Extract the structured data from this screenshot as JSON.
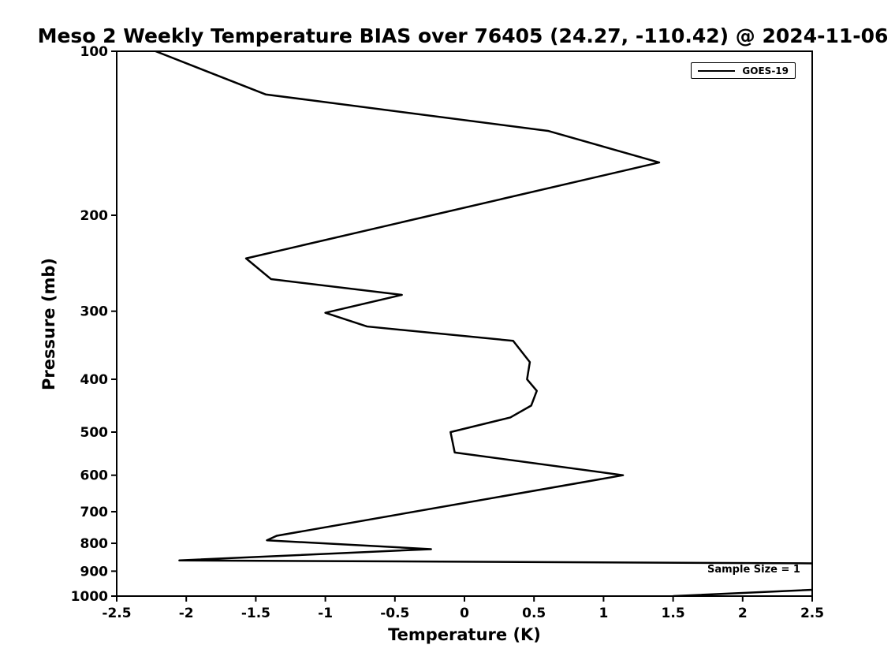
{
  "chart_data": {
    "type": "line",
    "title": "Meso 2 Weekly Temperature BIAS over 76405 (24.27, -110.42) @ 2024-11-06",
    "xlabel": "Temperature (K)",
    "ylabel": "Pressure (mb)",
    "xlim": [
      -2.5,
      2.5
    ],
    "ylim": [
      1000,
      100
    ],
    "yscale": "log",
    "grid": false,
    "x_ticks": [
      -2.5,
      -2,
      -1.5,
      -1,
      -0.5,
      0,
      0.5,
      1,
      1.5,
      2,
      2.5
    ],
    "x_tick_labels": [
      "-2.5",
      "-2",
      "-1.5",
      "-1",
      "-0.5",
      "0",
      "0.5",
      "1",
      "1.5",
      "2",
      "2.5"
    ],
    "y_ticks": [
      100,
      200,
      300,
      400,
      500,
      600,
      700,
      800,
      900,
      1000
    ],
    "line_color": "#000000",
    "legend": {
      "position": "upper right",
      "entries": [
        {
          "label": "GOES-19",
          "color": "#000000"
        }
      ]
    },
    "annotation": "Sample Size = 1",
    "series": [
      {
        "name": "GOES-19",
        "color": "#000000",
        "points": [
          {
            "temp": -2.22,
            "pressure": 100
          },
          {
            "temp": -1.43,
            "pressure": 120
          },
          {
            "temp": 0.6,
            "pressure": 140
          },
          {
            "temp": 1.4,
            "pressure": 160
          },
          {
            "temp": -1.57,
            "pressure": 240
          },
          {
            "temp": -1.39,
            "pressure": 262
          },
          {
            "temp": -0.45,
            "pressure": 280
          },
          {
            "temp": -1.0,
            "pressure": 302
          },
          {
            "temp": -0.7,
            "pressure": 320
          },
          {
            "temp": 0.35,
            "pressure": 340
          },
          {
            "temp": 0.47,
            "pressure": 372
          },
          {
            "temp": 0.45,
            "pressure": 400
          },
          {
            "temp": 0.52,
            "pressure": 420
          },
          {
            "temp": 0.48,
            "pressure": 447
          },
          {
            "temp": 0.33,
            "pressure": 470
          },
          {
            "temp": -0.1,
            "pressure": 500
          },
          {
            "temp": -0.07,
            "pressure": 545
          },
          {
            "temp": 1.14,
            "pressure": 600
          },
          {
            "temp": -1.35,
            "pressure": 775
          },
          {
            "temp": -1.42,
            "pressure": 790
          },
          {
            "temp": -0.24,
            "pressure": 820
          },
          {
            "temp": -2.05,
            "pressure": 860
          },
          {
            "temp": 6.3,
            "pressure": 880
          },
          {
            "temp": 1.5,
            "pressure": 1000
          }
        ]
      }
    ]
  }
}
